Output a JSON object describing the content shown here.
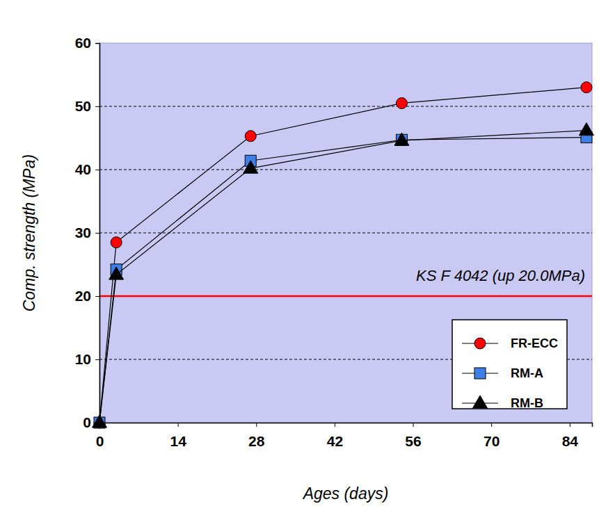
{
  "chart_data": {
    "type": "line",
    "x_label": "Ages (days)",
    "y_label": "Comp. strength (MPa)",
    "x": [
      0,
      3,
      27,
      54,
      87
    ],
    "series": [
      {
        "name": "FR-ECC",
        "color": "#ff0000",
        "marker": "circle",
        "values": [
          0,
          28.5,
          45.3,
          50.5,
          53.0
        ]
      },
      {
        "name": "RM-A",
        "color": "#3f7fe8",
        "marker": "square",
        "values": [
          0,
          24.2,
          41.4,
          44.7,
          45.1
        ]
      },
      {
        "name": "RM-B",
        "color": "#000000",
        "marker": "triangle",
        "values": [
          0,
          23.4,
          40.2,
          44.6,
          46.2
        ]
      }
    ],
    "xlim": [
      0,
      88
    ],
    "xticks": [
      0,
      14,
      28,
      42,
      56,
      70,
      84
    ],
    "ylim": [
      0,
      60
    ],
    "yticks": [
      0,
      10,
      20,
      30,
      40,
      50,
      60
    ],
    "grid": true,
    "legend": "lower right",
    "annotations": [
      {
        "text": "KS F 4042 (up 20.0MPa)",
        "y": 20,
        "color": "#ff0000"
      }
    ]
  }
}
